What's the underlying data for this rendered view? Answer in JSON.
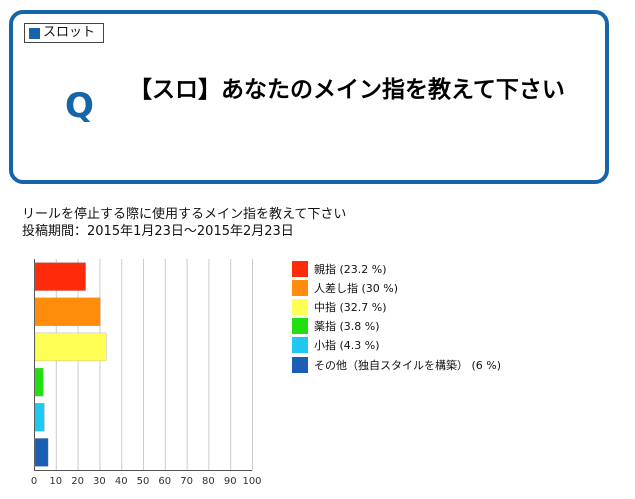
{
  "question_box": {
    "tag_label": "スロット",
    "q_mark": "Q",
    "question": "【スロ】あなたのメイン指を教えて下さい",
    "accent_color": "#1565a8"
  },
  "description": {
    "line1": "リールを停止する際に使用するメイン指を教えて下さい",
    "line2": "投稿期間：2015年1月23日〜2015年2月23日"
  },
  "chart_data": {
    "type": "bar",
    "orientation": "horizontal",
    "categories": [
      "親指",
      "人差し指",
      "中指",
      "薬指",
      "小指",
      "その他（独自スタイルを構築）"
    ],
    "values": [
      23.2,
      30,
      32.7,
      3.8,
      4.3,
      6
    ],
    "colors": [
      "#ff2a0a",
      "#ff8c0a",
      "#ffff55",
      "#22e010",
      "#1ec8f0",
      "#1a5fb4"
    ],
    "legend_labels": [
      "親指 (23.2 %)",
      "人差し指 (30 %)",
      "中指 (32.7 %)",
      "薬指 (3.8 %)",
      "小指 (4.3 %)",
      "その他（独自スタイルを構築） (6 %)"
    ],
    "xlim": [
      0,
      100
    ],
    "xticks": [
      0,
      10,
      20,
      30,
      40,
      50,
      60,
      70,
      80,
      90,
      100
    ],
    "grid": true,
    "legend_position": "right"
  }
}
